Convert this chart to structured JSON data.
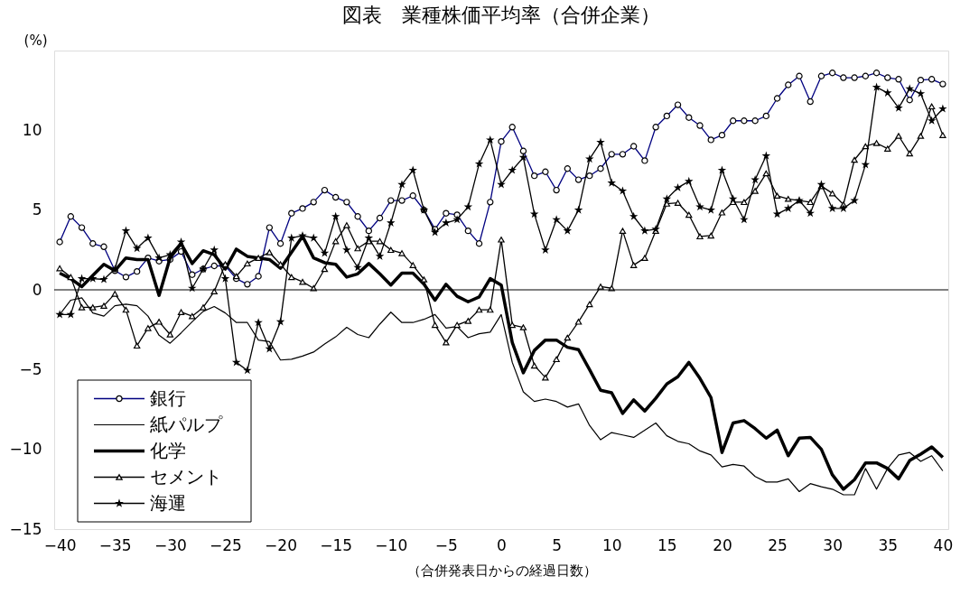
{
  "chart_data": {
    "type": "line",
    "title": "図表　業種株価平均率（合併企業）",
    "xlabel": "（合併発表日からの経過日数）",
    "ylabel": "(%)",
    "x": [
      -40,
      -39,
      -38,
      -37,
      -36,
      -35,
      -34,
      -33,
      -32,
      -31,
      -30,
      -29,
      -28,
      -27,
      -26,
      -25,
      -24,
      -23,
      -22,
      -21,
      -20,
      -19,
      -18,
      -17,
      -16,
      -15,
      -14,
      -13,
      -12,
      -11,
      -10,
      -9,
      -8,
      -7,
      -6,
      -5,
      -4,
      -3,
      -2,
      -1,
      0,
      1,
      2,
      3,
      4,
      5,
      6,
      7,
      8,
      9,
      10,
      11,
      12,
      13,
      14,
      15,
      16,
      17,
      18,
      19,
      20,
      21,
      22,
      23,
      24,
      25,
      26,
      27,
      28,
      29,
      30,
      31,
      32,
      33,
      34,
      35,
      36,
      37,
      38,
      39,
      40
    ],
    "xlim": [
      -40.5,
      40.5
    ],
    "xticks": [
      -40,
      -35,
      -30,
      -25,
      -20,
      -15,
      -10,
      -5,
      0,
      5,
      10,
      15,
      20,
      25,
      30,
      35,
      40
    ],
    "ylim": [
      -15,
      15
    ],
    "yticks": [
      -15,
      -10,
      -5,
      0,
      5,
      10
    ],
    "grid": false,
    "legend": "bottom left",
    "ref_lines": [
      {
        "axis": "y",
        "value": 0,
        "color": "#000000"
      }
    ],
    "series": [
      {
        "name": "銀行",
        "color": "#000080",
        "marker": "circle",
        "values": [
          3.0,
          4.6,
          3.9,
          2.9,
          2.7,
          1.2,
          0.8,
          1.15,
          2.0,
          1.8,
          1.9,
          2.4,
          0.95,
          1.3,
          1.5,
          1.5,
          0.7,
          0.35,
          0.85,
          3.9,
          2.9,
          4.8,
          5.1,
          5.5,
          6.25,
          5.8,
          5.5,
          4.6,
          3.7,
          4.5,
          5.6,
          5.6,
          5.9,
          5.0,
          3.8,
          4.8,
          4.7,
          3.7,
          2.9,
          5.5,
          9.3,
          10.2,
          8.7,
          7.15,
          7.4,
          6.25,
          7.6,
          6.9,
          7.15,
          7.6,
          8.5,
          8.5,
          9.0,
          8.1,
          10.2,
          10.9,
          11.6,
          10.8,
          10.3,
          9.4,
          9.7,
          10.6,
          10.6,
          10.6,
          10.9,
          12.0,
          12.85,
          13.4,
          11.8,
          13.4,
          13.6,
          13.3,
          13.3,
          13.4,
          13.6,
          13.3,
          13.2,
          11.9,
          13.15,
          13.2,
          12.9
        ]
      },
      {
        "name": "紙パルプ",
        "color": "#000000",
        "marker": "none",
        "values": [
          -1.55,
          -0.65,
          -0.5,
          -1.45,
          -1.65,
          -1.0,
          -0.9,
          -1.0,
          -1.65,
          -2.85,
          -3.35,
          -2.7,
          -2.0,
          -1.35,
          -1.05,
          -1.45,
          -2.05,
          -2.05,
          -3.15,
          -3.25,
          -4.4,
          -4.35,
          -4.15,
          -3.9,
          -3.4,
          -2.95,
          -2.35,
          -2.8,
          -3.0,
          -2.15,
          -1.4,
          -2.05,
          -2.05,
          -1.85,
          -1.55,
          -2.4,
          -2.3,
          -3.0,
          -2.75,
          -2.65,
          -1.55,
          -4.55,
          -6.4,
          -7.0,
          -6.85,
          -7.0,
          -7.35,
          -7.15,
          -8.5,
          -9.4,
          -8.95,
          -9.1,
          -9.25,
          -8.8,
          -8.35,
          -9.15,
          -9.5,
          -9.65,
          -10.1,
          -10.35,
          -11.1,
          -10.95,
          -11.05,
          -11.7,
          -12.05,
          -12.05,
          -11.85,
          -12.65,
          -12.15,
          -12.35,
          -12.5,
          -12.85,
          -12.85,
          -11.2,
          -12.5,
          -11.2,
          -10.35,
          -10.2,
          -10.75,
          -10.4,
          -11.35
        ]
      },
      {
        "name": "化学",
        "color": "#000000",
        "marker": "none",
        "values": [
          1.05,
          0.7,
          0.2,
          0.9,
          1.6,
          1.2,
          2.0,
          1.9,
          1.9,
          -0.35,
          2.0,
          2.9,
          1.65,
          2.45,
          2.2,
          1.3,
          2.55,
          2.1,
          2.0,
          1.9,
          1.35,
          2.35,
          3.35,
          2.0,
          1.7,
          1.6,
          0.8,
          1.0,
          1.65,
          1.0,
          0.3,
          1.05,
          1.05,
          0.35,
          -0.65,
          0.35,
          -0.4,
          -0.75,
          -0.45,
          0.7,
          0.3,
          -3.3,
          -5.2,
          -3.8,
          -3.15,
          -3.15,
          -3.6,
          -3.75,
          -5.0,
          -6.3,
          -6.45,
          -7.75,
          -6.9,
          -7.6,
          -6.8,
          -5.9,
          -5.45,
          -4.55,
          -5.55,
          -6.75,
          -10.2,
          -8.35,
          -8.2,
          -8.7,
          -9.3,
          -8.8,
          -10.4,
          -9.3,
          -9.25,
          -10.0,
          -11.6,
          -12.5,
          -11.9,
          -10.85,
          -10.85,
          -11.2,
          -11.85,
          -10.7,
          -10.3,
          -9.85,
          -10.5
        ]
      },
      {
        "name": "セメント",
        "color": "#000000",
        "marker": "triangle",
        "values": [
          1.35,
          0.8,
          -1.1,
          -1.1,
          -1.0,
          -0.25,
          -1.25,
          -3.5,
          -2.4,
          -2.0,
          -2.8,
          -1.4,
          -1.65,
          -1.1,
          -0.1,
          1.6,
          0.85,
          1.65,
          2.0,
          2.35,
          1.6,
          0.8,
          0.5,
          0.1,
          1.3,
          3.05,
          4.05,
          2.6,
          3.05,
          3.05,
          2.5,
          2.3,
          1.55,
          0.65,
          -2.2,
          -3.3,
          -2.2,
          -1.95,
          -1.25,
          -1.25,
          3.15,
          -2.2,
          -2.35,
          -4.75,
          -5.5,
          -4.35,
          -3.0,
          -2.0,
          -0.9,
          0.2,
          0.1,
          3.7,
          1.55,
          2.0,
          3.7,
          5.4,
          5.45,
          4.7,
          3.35,
          3.4,
          4.85,
          5.5,
          5.5,
          6.2,
          7.3,
          5.9,
          5.7,
          5.6,
          5.5,
          6.5,
          6.05,
          5.35,
          8.15,
          9.0,
          9.2,
          8.85,
          9.65,
          8.55,
          9.65,
          11.5,
          9.7
        ]
      },
      {
        "name": "海運",
        "color": "#000000",
        "marker": "star",
        "values": [
          -1.55,
          -1.55,
          0.7,
          0.7,
          0.65,
          1.3,
          3.7,
          2.6,
          3.25,
          2.0,
          2.2,
          3.0,
          0.1,
          1.3,
          2.5,
          0.7,
          -4.55,
          -5.05,
          -2.05,
          -3.7,
          -2.0,
          3.25,
          3.4,
          3.25,
          2.3,
          4.6,
          2.5,
          1.4,
          3.25,
          2.1,
          4.2,
          6.6,
          7.5,
          5.0,
          3.6,
          4.2,
          4.4,
          5.2,
          7.9,
          9.4,
          6.6,
          7.5,
          8.3,
          4.75,
          2.5,
          4.4,
          3.7,
          5.0,
          8.2,
          9.25,
          6.7,
          6.2,
          4.6,
          3.7,
          3.8,
          5.7,
          6.4,
          6.8,
          5.2,
          5.0,
          7.5,
          5.7,
          4.4,
          6.9,
          8.4,
          4.75,
          5.1,
          5.6,
          4.8,
          6.6,
          5.1,
          5.1,
          5.6,
          7.85,
          12.7,
          12.35,
          11.4,
          12.6,
          12.3,
          10.6,
          11.35
        ]
      }
    ]
  }
}
